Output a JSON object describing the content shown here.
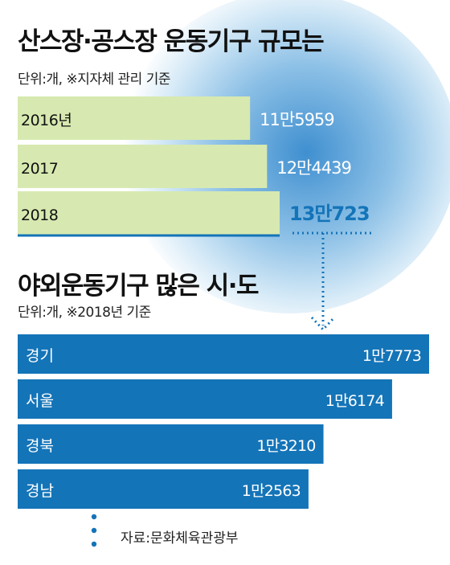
{
  "titles": {
    "top": "산스장·공스장 운동기구 규모는",
    "top_unit": "단위:개, ※지자체 관리 기준",
    "bottom": "야외운동기구 많은 시·도",
    "bottom_unit": "단위:개, ※2018년 기준"
  },
  "source": "자료:문화체육관광부",
  "colors": {
    "bar_top": "#d7e9b0",
    "bar_bottom": "#1474b8",
    "accent": "#1474b8"
  },
  "chart_data": [
    {
      "type": "bar",
      "orientation": "horizontal",
      "title": "산스장·공스장 운동기구 규모는",
      "unit": "단위:개, ※지자체 관리 기준",
      "categories": [
        "2016년",
        "2017",
        "2018"
      ],
      "values": [
        115959,
        124439,
        130723
      ],
      "labels": [
        "11만5959",
        "12만4439",
        "13만723"
      ],
      "highlight_index": 2
    },
    {
      "type": "bar",
      "orientation": "horizontal",
      "title": "야외운동기구 많은 시·도",
      "unit": "단위:개, ※2018년 기준",
      "categories": [
        "경기",
        "서울",
        "경북",
        "경남"
      ],
      "values": [
        17773,
        16174,
        13210,
        12563
      ],
      "labels": [
        "1만7773",
        "1만6174",
        "1만3210",
        "1만2563"
      ]
    }
  ]
}
